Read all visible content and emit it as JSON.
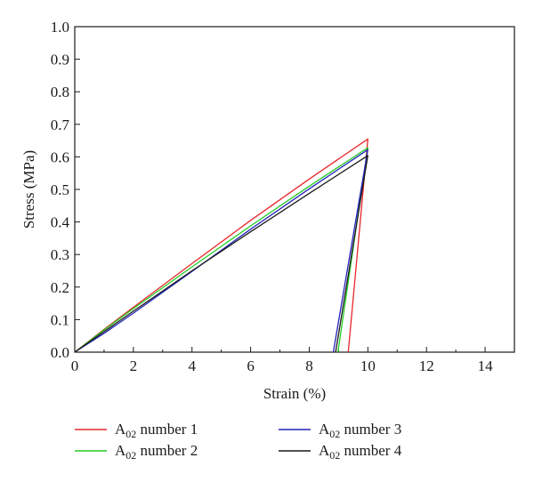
{
  "chart_data": {
    "type": "line",
    "xlabel": "Strain (%)",
    "ylabel": "Stress (MPa)",
    "xlim": [
      0,
      15
    ],
    "ylim": [
      0,
      1.0
    ],
    "xticks": [
      "0",
      "2",
      "4",
      "6",
      "8",
      "10",
      "12",
      "14"
    ],
    "yticks": [
      "0.0",
      "0.1",
      "0.2",
      "0.3",
      "0.4",
      "0.5",
      "0.6",
      "0.7",
      "0.8",
      "0.9",
      "1.0"
    ],
    "grid": false,
    "legend_position": "bottom",
    "series": [
      {
        "name": "A02 number 1",
        "legend_base": "A",
        "legend_sub": "02",
        "legend_rest": " number 1",
        "color": "#e8262a",
        "points": [
          [
            0,
            0
          ],
          [
            1,
            0.07
          ],
          [
            2,
            0.138
          ],
          [
            4,
            0.272
          ],
          [
            6,
            0.405
          ],
          [
            8,
            0.532
          ],
          [
            10,
            0.655
          ],
          [
            9.33,
            0
          ]
        ]
      },
      {
        "name": "A02 number 2",
        "legend_base": "A",
        "legend_sub": "02",
        "legend_rest": " number 2",
        "color": "#22cc22",
        "points": [
          [
            0,
            0
          ],
          [
            1,
            0.068
          ],
          [
            2,
            0.134
          ],
          [
            4,
            0.262
          ],
          [
            6,
            0.388
          ],
          [
            8,
            0.51
          ],
          [
            10,
            0.628
          ],
          [
            8.98,
            0
          ]
        ]
      },
      {
        "name": "A02 number 3",
        "legend_base": "A",
        "legend_sub": "02",
        "legend_rest": " number 3",
        "color": "#2222bb",
        "points": [
          [
            0,
            0
          ],
          [
            1,
            0.058
          ],
          [
            2,
            0.12
          ],
          [
            4,
            0.248
          ],
          [
            6,
            0.378
          ],
          [
            8,
            0.502
          ],
          [
            10,
            0.622
          ],
          [
            8.82,
            0
          ]
        ]
      },
      {
        "name": "A02 number 4",
        "legend_base": "A",
        "legend_sub": "02",
        "legend_rest": " number 4",
        "color": "#1a1a1a",
        "points": [
          [
            0,
            0
          ],
          [
            1,
            0.063
          ],
          [
            2,
            0.126
          ],
          [
            4,
            0.25
          ],
          [
            6,
            0.37
          ],
          [
            8,
            0.488
          ],
          [
            10,
            0.604
          ],
          [
            8.9,
            0
          ]
        ]
      }
    ]
  }
}
